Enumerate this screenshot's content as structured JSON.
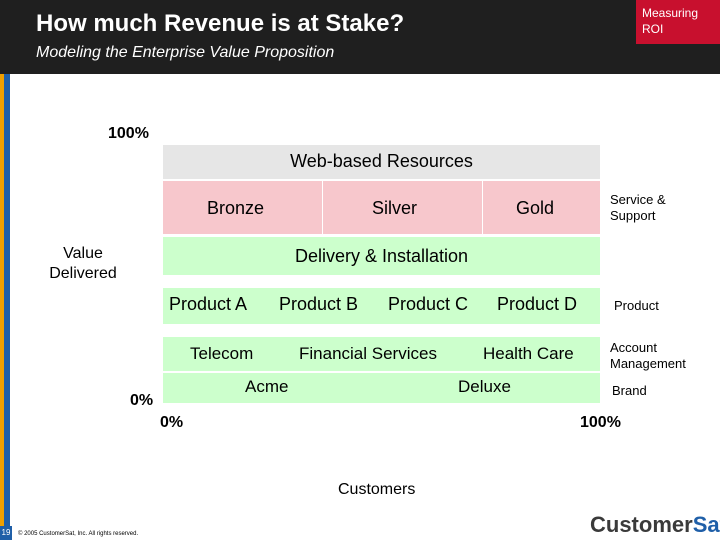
{
  "header": {
    "title": "How much Revenue is at Stake?",
    "subtitle": "Modeling the Enterprise Value Proposition",
    "tag": "Measuring ROI"
  },
  "diagram": {
    "y_top_label": "100%",
    "y_bottom_label": "0%",
    "y_axis_label": "Value Delivered",
    "x_left_label": "0%",
    "x_right_label": "100%",
    "x_axis_label": "Customers",
    "bands": {
      "web": "Web-based Resources",
      "bronze": "Bronze",
      "silver": "Silver",
      "gold": "Gold",
      "delivery": "Delivery & Installation",
      "product_a": "Product A",
      "product_b": "Product B",
      "product_c": "Product C",
      "product_d": "Product D",
      "telecom": "Telecom",
      "financial": "Financial Services",
      "health": "Health Care",
      "acme": "Acme",
      "deluxe": "Deluxe"
    },
    "right_labels": {
      "service": "Service & Support",
      "product": "Product",
      "account": "Account Management",
      "brand": "Brand"
    },
    "colors": {
      "web": "#e6e6e6",
      "service": "#f7c7cc",
      "green": "#ccffcc"
    }
  },
  "footer": {
    "logo_prefix": "Customer",
    "logo_suffix": "Sat",
    "copyright": "© 2005 CustomerSat, Inc. All rights reserved.",
    "slide_number": "19"
  }
}
